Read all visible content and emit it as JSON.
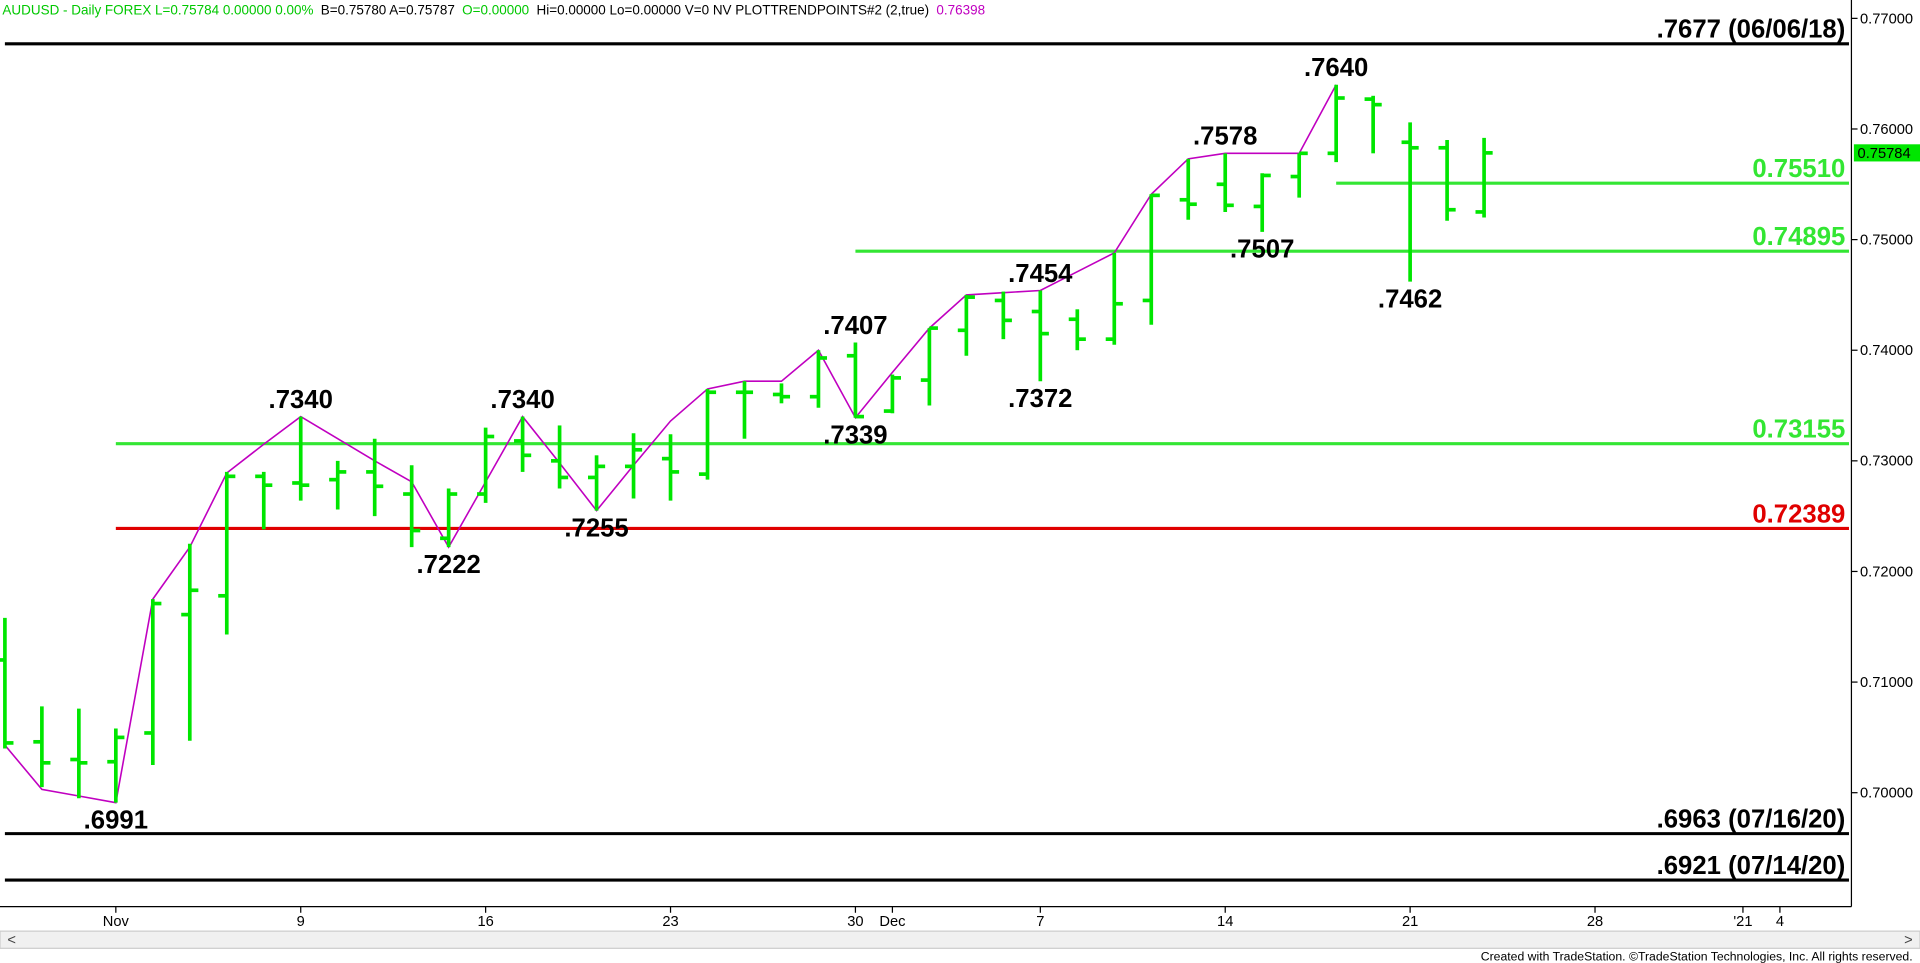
{
  "header": [
    {
      "text": "AUDUSD - Daily  FOREX  L=0.75784  0.00000  0.00%",
      "color": "#00c800"
    },
    {
      "text": "B=0.75780  A=0.75787",
      "color": "#000000"
    },
    {
      "text": "O=0.00000",
      "color": "#00c800"
    },
    {
      "text": "Hi=0.00000  Lo=0.00000  V=0  NV  PLOTTRENDPOINTS#2 (2,true)",
      "color": "#000000"
    },
    {
      "text": "0.76398",
      "color": "#c000c0"
    }
  ],
  "footer": "Created with TradeStation. ©TradeStation Technologies, Inc. All rights reserved.",
  "chart_data": {
    "type": "ohlc",
    "categories": [
      null,
      null,
      null,
      "Nov",
      null,
      null,
      null,
      null,
      "9",
      null,
      null,
      null,
      null,
      "16",
      null,
      null,
      null,
      null,
      "23",
      null,
      null,
      null,
      null,
      "30",
      "Dec",
      null,
      null,
      null,
      "7",
      null,
      null,
      null,
      null,
      "14",
      null,
      null,
      null,
      null,
      "21",
      null,
      null,
      null,
      null,
      "28",
      null,
      null,
      null,
      "'21",
      "4",
      null
    ],
    "open": [
      0.712,
      0.7046,
      0.703,
      0.7028,
      0.7054,
      0.7161,
      0.7178,
      0.7286,
      0.728,
      0.7283,
      0.729,
      0.727,
      0.723,
      0.727,
      0.7318,
      0.73,
      0.7285,
      0.7295,
      0.7302,
      0.7288,
      0.7362,
      0.736,
      0.7358,
      0.7395,
      0.7345,
      0.7373,
      0.7418,
      0.7445,
      0.7435,
      0.7428,
      0.741,
      0.7445,
      0.7536,
      0.755,
      0.753,
      0.7557,
      0.7578,
      0.7627,
      0.7588,
      0.7583,
      0.7525,
      null,
      null,
      null,
      null,
      null,
      null,
      null,
      null,
      null
    ],
    "high": [
      0.7158,
      0.7078,
      0.7076,
      0.7058,
      0.7175,
      0.7225,
      0.729,
      0.729,
      0.734,
      0.73,
      0.732,
      0.7296,
      0.7275,
      0.733,
      0.734,
      0.7332,
      0.7305,
      0.7325,
      0.7324,
      0.7365,
      0.7372,
      0.737,
      0.74,
      0.7407,
      0.7378,
      0.742,
      0.745,
      0.7453,
      0.7454,
      0.7437,
      0.7488,
      0.7541,
      0.7573,
      0.7578,
      0.756,
      0.7578,
      0.764,
      0.763,
      0.7606,
      0.759,
      0.7592,
      null,
      null,
      null,
      null,
      null,
      null,
      null,
      null,
      null
    ],
    "low": [
      0.704,
      0.7005,
      0.6995,
      0.6991,
      0.7025,
      0.7047,
      0.7143,
      0.7238,
      0.7264,
      0.7256,
      0.725,
      0.7222,
      0.7222,
      0.7262,
      0.729,
      0.7275,
      0.7255,
      0.7266,
      0.7264,
      0.7283,
      0.732,
      0.7352,
      0.7348,
      0.7339,
      0.7343,
      0.735,
      0.7395,
      0.741,
      0.7372,
      0.74,
      0.7405,
      0.7423,
      0.7518,
      0.7525,
      0.7507,
      0.7538,
      0.757,
      0.7578,
      0.7462,
      0.7517,
      0.752,
      null,
      null,
      null,
      null,
      null,
      null,
      null,
      null,
      null
    ],
    "close": [
      0.7045,
      0.7027,
      0.7027,
      0.705,
      0.7171,
      0.7183,
      0.7286,
      0.7278,
      0.7278,
      0.729,
      0.7277,
      0.7237,
      0.727,
      0.7322,
      0.7305,
      0.7285,
      0.7295,
      0.731,
      0.729,
      0.7362,
      0.7362,
      0.7358,
      0.7393,
      0.734,
      0.7375,
      0.742,
      0.7448,
      0.7427,
      0.7415,
      0.741,
      0.7442,
      0.754,
      0.7532,
      0.7531,
      0.7558,
      0.7578,
      0.7628,
      0.7622,
      0.7583,
      0.7527,
      0.75784,
      null,
      null,
      null,
      null,
      null,
      null,
      null,
      null,
      null
    ],
    "color": "#00e600",
    "trend": {
      "color": "#c000c0",
      "values": [
        0.7043,
        0.7003,
        0.6997,
        0.6991,
        0.7175,
        0.7222,
        0.7289,
        0.7315,
        0.734,
        0.732,
        0.73,
        0.7281,
        0.7222,
        0.7281,
        0.734,
        0.7298,
        0.7255,
        0.7296,
        0.7336,
        0.7365,
        0.7372,
        0.7372,
        0.74,
        0.7339,
        0.738,
        0.742,
        0.745,
        0.7452,
        0.7454,
        0.7471,
        0.7488,
        0.7541,
        0.7573,
        0.7578,
        0.7578,
        0.7578,
        0.764,
        null,
        null,
        null,
        null,
        null,
        null,
        null,
        null,
        null,
        null,
        null,
        null,
        null
      ]
    },
    "levels": [
      {
        "value": 0.7677,
        "label": ".7677 (06/06/18)",
        "color": "#000000",
        "from": 0
      },
      {
        "value": 0.7551,
        "label": "0.75510",
        "color": "#33e633",
        "from": 36
      },
      {
        "value": 0.74895,
        "label": "0.74895",
        "color": "#33e633",
        "from": 23
      },
      {
        "value": 0.73155,
        "label": "0.73155",
        "color": "#33e633",
        "from": 3
      },
      {
        "value": 0.72389,
        "label": "0.72389",
        "color": "#e00000",
        "from": 3
      },
      {
        "value": 0.6963,
        "label": ".6963 (07/16/20)",
        "color": "#000000",
        "from": 0
      },
      {
        "value": 0.6921,
        "label": ".6921 (07/14/20)",
        "color": "#000000",
        "from": 0
      }
    ],
    "annotations": [
      {
        "value": 0.764,
        "label": ".7640",
        "index": 36,
        "pos": "above"
      },
      {
        "value": 0.7578,
        "label": ".7578",
        "index": 33,
        "pos": "above"
      },
      {
        "value": 0.7507,
        "label": ".7507",
        "index": 34,
        "pos": "below"
      },
      {
        "value": 0.7462,
        "label": ".7462",
        "index": 38,
        "pos": "below"
      },
      {
        "value": 0.7454,
        "label": ".7454",
        "index": 28,
        "pos": "above"
      },
      {
        "value": 0.7372,
        "label": ".7372",
        "index": 28,
        "pos": "below"
      },
      {
        "value": 0.7407,
        "label": ".7407",
        "index": 23,
        "pos": "above"
      },
      {
        "value": 0.7339,
        "label": ".7339",
        "index": 23,
        "pos": "below"
      },
      {
        "value": 0.734,
        "label": ".7340",
        "index": 8,
        "pos": "above"
      },
      {
        "value": 0.734,
        "label": ".7340",
        "index": 14,
        "pos": "above"
      },
      {
        "value": 0.7222,
        "label": ".7222",
        "index": 12,
        "pos": "below"
      },
      {
        "value": 0.7255,
        "label": ".7255",
        "index": 16,
        "pos": "below"
      },
      {
        "value": 0.6991,
        "label": ".6991",
        "index": 3,
        "pos": "below"
      }
    ],
    "last": {
      "value": 0.75784,
      "label": "0.75784",
      "color": "#00e600"
    },
    "ylim": [
      0.6897,
      0.77166
    ],
    "yticks": [
      {
        "value": 0.7,
        "label": "0.70000"
      },
      {
        "value": 0.71,
        "label": "0.71000"
      },
      {
        "value": 0.72,
        "label": "0.72000"
      },
      {
        "value": 0.73,
        "label": "0.73000"
      },
      {
        "value": 0.74,
        "label": "0.74000"
      },
      {
        "value": 0.75,
        "label": "0.75000"
      },
      {
        "value": 0.76,
        "label": "0.76000"
      },
      {
        "value": 0.77,
        "label": "0.77000"
      }
    ]
  }
}
